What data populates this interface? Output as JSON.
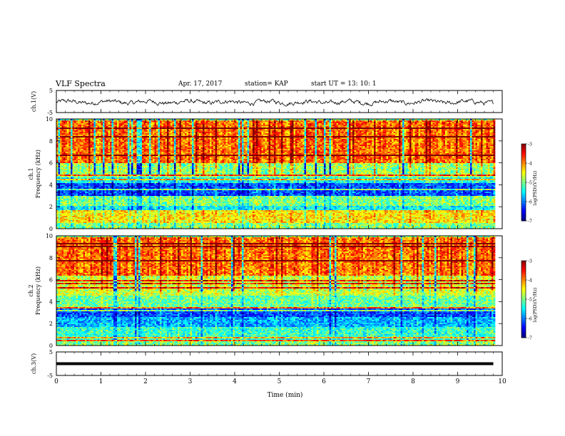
{
  "header": {
    "title": "VLF Spectra",
    "date": "Apr. 17, 2017",
    "station": "station= KAP",
    "start": "start UT =   13: 10: 1"
  },
  "colors": {
    "colormap": [
      "#00007f",
      "#0000ff",
      "#0080ff",
      "#00ffff",
      "#80ff80",
      "#ffff00",
      "#ff8000",
      "#ff0000",
      "#7f0000"
    ]
  },
  "chart_data": [
    {
      "type": "line",
      "ylabel": "ch.1(V)",
      "ylim": [
        -5,
        5
      ],
      "yticks": [
        -5,
        5
      ],
      "xlim": [
        0,
        10
      ],
      "description_values": "noisy trace centered near 0 V with amplitude about 1.5 V",
      "series": [
        {
          "y_range": [
            -1.8,
            1.5
          ]
        }
      ]
    },
    {
      "type": "heatmap",
      "ylabel": "ch.1\nFrequency (kHz)",
      "ylim": [
        0,
        10
      ],
      "yticks": [
        0,
        2,
        4,
        6,
        8,
        10
      ],
      "xlim": [
        0,
        10
      ],
      "colorbar": {
        "label": "log(PSD)(V²/Hz)",
        "range": [
          -7,
          -3
        ],
        "ticks": [
          -7,
          -6,
          -5,
          -4,
          -3
        ]
      },
      "bands": [
        {
          "from": 0,
          "to": 0.6,
          "level": -5.0
        },
        {
          "from": 0.6,
          "to": 1.6,
          "level": -4.4
        },
        {
          "from": 1.6,
          "to": 2.2,
          "level": -5.5
        },
        {
          "from": 2.2,
          "to": 3.0,
          "level": -5.0
        },
        {
          "from": 3.0,
          "to": 4.2,
          "level": -6.2
        },
        {
          "from": 4.2,
          "to": 4.8,
          "level": -5.4
        },
        {
          "from": 4.8,
          "to": 6.0,
          "level": -4.9
        },
        {
          "from": 6.0,
          "to": 10,
          "level": -3.9
        }
      ]
    },
    {
      "type": "heatmap",
      "ylabel": "ch.2\nFrequency (kHz)",
      "ylim": [
        0,
        10
      ],
      "yticks": [
        0,
        2,
        4,
        6,
        8,
        10
      ],
      "xlim": [
        0,
        10
      ],
      "colorbar": {
        "label": "log(PSD)(V²/Hz)",
        "range": [
          -7,
          -3
        ],
        "ticks": [
          -7,
          -6,
          -5,
          -4,
          -3
        ]
      },
      "bands": [
        {
          "from": 0,
          "to": 0.6,
          "level": -5.0
        },
        {
          "from": 0.6,
          "to": 1.8,
          "level": -5.3
        },
        {
          "from": 1.8,
          "to": 2.6,
          "level": -5.8
        },
        {
          "from": 2.6,
          "to": 3.4,
          "level": -6.2
        },
        {
          "from": 3.4,
          "to": 4.6,
          "level": -5.1
        },
        {
          "from": 4.6,
          "to": 6.4,
          "level": -4.7
        },
        {
          "from": 6.4,
          "to": 10,
          "level": -3.9
        }
      ]
    },
    {
      "type": "line",
      "ylabel": "ch.3(V)",
      "ylim": [
        -5,
        5
      ],
      "yticks": [
        -5,
        5
      ],
      "xlim": [
        0,
        10
      ],
      "series": [
        {
          "constant": 0
        }
      ]
    }
  ],
  "xaxis": {
    "label": "Time (min)",
    "range": [
      0,
      10
    ],
    "ticks": [
      0,
      1,
      2,
      3,
      4,
      5,
      6,
      7,
      8,
      9,
      10
    ]
  }
}
